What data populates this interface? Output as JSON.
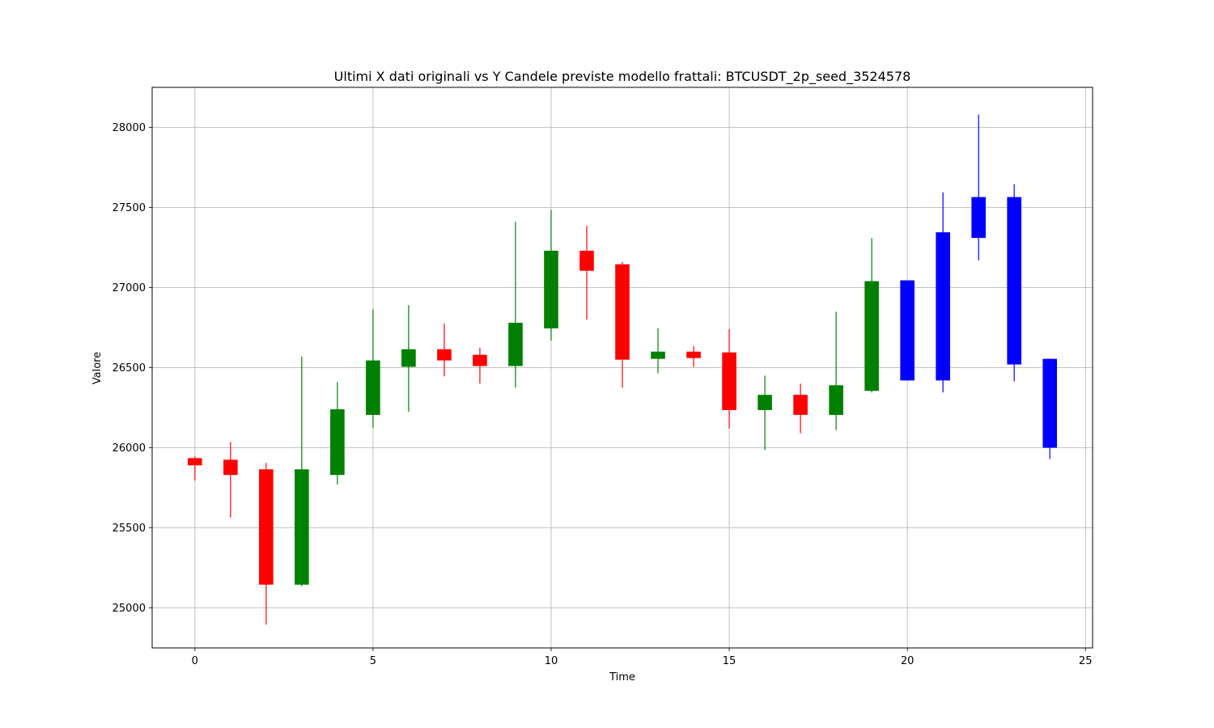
{
  "chart_data": {
    "type": "candlestick",
    "title": "Ultimi X dati originali vs Y Candele previste modello frattali: BTCUSDT_2p_seed_3524578",
    "xlabel": "Time",
    "ylabel": "Valore",
    "xlim": [
      -1.2,
      25.2
    ],
    "ylim": [
      24750,
      28250
    ],
    "x_ticks": [
      0,
      5,
      10,
      15,
      20,
      25
    ],
    "y_ticks": [
      25000,
      25500,
      26000,
      26500,
      27000,
      27500,
      28000
    ],
    "grid": true,
    "colors": {
      "up": "#008000",
      "down": "#ff0000",
      "forecast": "#0000ff"
    },
    "candles": [
      {
        "x": 0,
        "open": 25935,
        "high": 25945,
        "low": 25795,
        "close": 25890,
        "group": "original"
      },
      {
        "x": 1,
        "open": 25925,
        "high": 26035,
        "low": 25565,
        "close": 25830,
        "group": "original"
      },
      {
        "x": 2,
        "open": 25865,
        "high": 25905,
        "low": 24895,
        "close": 25145,
        "group": "original"
      },
      {
        "x": 3,
        "open": 25145,
        "high": 26570,
        "low": 25135,
        "close": 25865,
        "group": "original"
      },
      {
        "x": 4,
        "open": 25830,
        "high": 26410,
        "low": 25770,
        "close": 26240,
        "group": "original"
      },
      {
        "x": 5,
        "open": 26205,
        "high": 26865,
        "low": 26125,
        "close": 26545,
        "group": "original"
      },
      {
        "x": 6,
        "open": 26505,
        "high": 26890,
        "low": 26225,
        "close": 26615,
        "group": "original"
      },
      {
        "x": 7,
        "open": 26615,
        "high": 26775,
        "low": 26445,
        "close": 26545,
        "group": "original"
      },
      {
        "x": 8,
        "open": 26580,
        "high": 26625,
        "low": 26400,
        "close": 26510,
        "group": "original"
      },
      {
        "x": 9,
        "open": 26510,
        "high": 27410,
        "low": 26375,
        "close": 26780,
        "group": "original"
      },
      {
        "x": 10,
        "open": 26745,
        "high": 27485,
        "low": 26670,
        "close": 27230,
        "group": "original"
      },
      {
        "x": 11,
        "open": 27230,
        "high": 27385,
        "low": 26800,
        "close": 27105,
        "group": "original"
      },
      {
        "x": 12,
        "open": 27145,
        "high": 27160,
        "low": 26375,
        "close": 26550,
        "group": "original"
      },
      {
        "x": 13,
        "open": 26555,
        "high": 26745,
        "low": 26465,
        "close": 26600,
        "group": "original"
      },
      {
        "x": 14,
        "open": 26600,
        "high": 26635,
        "low": 26505,
        "close": 26560,
        "group": "original"
      },
      {
        "x": 15,
        "open": 26595,
        "high": 26740,
        "low": 26120,
        "close": 26235,
        "group": "original"
      },
      {
        "x": 16,
        "open": 26235,
        "high": 26450,
        "low": 25985,
        "close": 26330,
        "group": "original"
      },
      {
        "x": 17,
        "open": 26330,
        "high": 26400,
        "low": 26090,
        "close": 26205,
        "group": "original"
      },
      {
        "x": 18,
        "open": 26205,
        "high": 26850,
        "low": 26110,
        "close": 26390,
        "group": "original"
      },
      {
        "x": 19,
        "open": 26355,
        "high": 27310,
        "low": 26345,
        "close": 27040,
        "group": "original"
      },
      {
        "x": 20,
        "open": 26420,
        "high": 27045,
        "low": 26420,
        "close": 27045,
        "group": "forecast"
      },
      {
        "x": 21,
        "open": 26420,
        "high": 27595,
        "low": 26345,
        "close": 27345,
        "group": "forecast"
      },
      {
        "x": 22,
        "open": 27310,
        "high": 28080,
        "low": 27170,
        "close": 27565,
        "group": "forecast"
      },
      {
        "x": 23,
        "open": 26520,
        "high": 27645,
        "low": 26415,
        "close": 27565,
        "group": "forecast"
      },
      {
        "x": 24,
        "open": 26000,
        "high": 26555,
        "low": 25930,
        "close": 26555,
        "group": "forecast"
      }
    ]
  }
}
